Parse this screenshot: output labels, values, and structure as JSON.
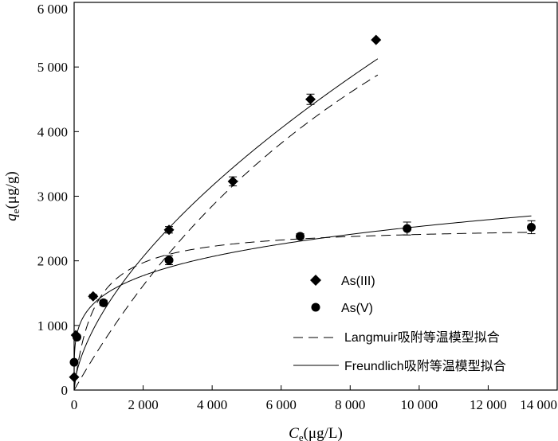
{
  "chart_data": {
    "type": "scatter",
    "title": "",
    "xlabel": {
      "main": "C",
      "sub": "e",
      "unit": "(μg/L)"
    },
    "ylabel": {
      "main": "q",
      "sub": "e",
      "unit": "(μg/g)"
    },
    "xlim": [
      0,
      14000
    ],
    "ylim": [
      0,
      6000
    ],
    "x_ticks": [
      0,
      2000,
      4000,
      6000,
      8000,
      10000,
      12000,
      14000
    ],
    "x_tick_labels": [
      "0",
      "2 000",
      "4 000",
      "6 000",
      "8 000",
      "10 000",
      "12 000",
      "14 000"
    ],
    "y_ticks": [
      0,
      1000,
      2000,
      3000,
      4000,
      5000,
      6000
    ],
    "y_tick_labels": [
      "0",
      "1 000",
      "2 000",
      "3 000",
      "4 000",
      "5 000",
      "6 000"
    ],
    "grid": false,
    "legend_position": "bottom-right",
    "series": [
      {
        "name": "As(III)",
        "marker": "diamond",
        "points": [
          {
            "x": 0,
            "y": 200,
            "err": 0
          },
          {
            "x": 50,
            "y": 850,
            "err": 0
          },
          {
            "x": 550,
            "y": 1450,
            "err": 30
          },
          {
            "x": 2750,
            "y": 2480,
            "err": 50
          },
          {
            "x": 4600,
            "y": 3230,
            "err": 70
          },
          {
            "x": 6850,
            "y": 4500,
            "err": 80
          },
          {
            "x": 8750,
            "y": 5420,
            "err": 0
          }
        ]
      },
      {
        "name": "As(V)",
        "marker": "circle",
        "points": [
          {
            "x": 0,
            "y": 430,
            "err": 0
          },
          {
            "x": 80,
            "y": 820,
            "err": 0
          },
          {
            "x": 850,
            "y": 1350,
            "err": 40
          },
          {
            "x": 2750,
            "y": 2010,
            "err": 70
          },
          {
            "x": 6550,
            "y": 2380,
            "err": 40
          },
          {
            "x": 9650,
            "y": 2500,
            "err": 100
          },
          {
            "x": 13250,
            "y": 2520,
            "err": 100
          }
        ]
      }
    ],
    "fits": [
      {
        "name": "Langmuir吸附等温模型拟合",
        "style": "dashed",
        "curves": [
          {
            "model": "langmuir",
            "qmax": 12000,
            "K": 7.78e-05,
            "x_range": [
              0,
              8800
            ]
          },
          {
            "model": "langmuir",
            "qmax": 2550,
            "K": 0.0017,
            "x_range": [
              0,
              13250
            ]
          }
        ]
      },
      {
        "name": "Freundlich吸附等温模型拟合",
        "style": "solid",
        "curves": [
          {
            "model": "freundlich",
            "Kf": 19.3,
            "n": 1.627,
            "x_range": [
              0,
              8800
            ]
          },
          {
            "model": "freundlich",
            "Kf": 327,
            "n": 4.5,
            "x_range": [
              0,
              13250
            ]
          }
        ]
      }
    ]
  }
}
